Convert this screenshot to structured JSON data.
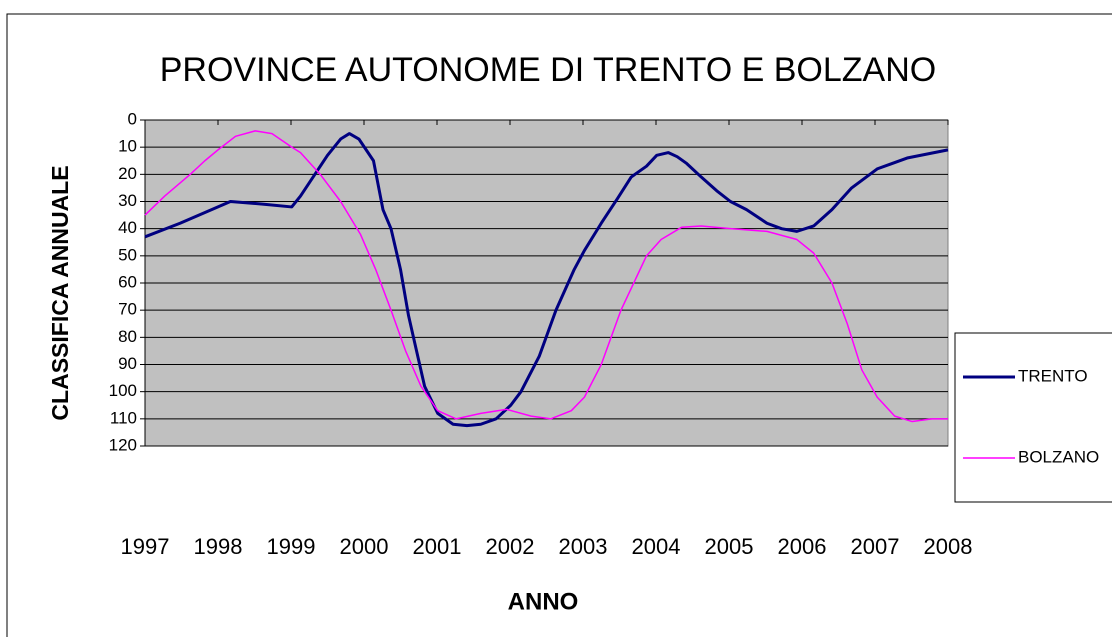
{
  "chart_data": {
    "type": "line",
    "title": "PROVINCE AUTONOME DI TRENTO E BOLZANO",
    "x_label": "ANNO",
    "y_label": "CLASSIFICA ANNUALE",
    "xlim": [
      1997,
      2008
    ],
    "xticks": [
      1997,
      1998,
      1999,
      2000,
      2001,
      2002,
      2003,
      2004,
      2005,
      2006,
      2007,
      2008
    ],
    "ylim": [
      0,
      120
    ],
    "y_inverted": true,
    "yticks": [
      0,
      10,
      20,
      30,
      40,
      50,
      60,
      70,
      80,
      90,
      100,
      110,
      120
    ],
    "grid": true,
    "legend": "right",
    "series": [
      {
        "name": "TRENTO",
        "color": "#000080",
        "x": [
          1997,
          1997.48,
          1998,
          1998.17,
          1998.63,
          1999.01,
          1999.13,
          1999.5,
          1999.68,
          1999.8,
          1999.93,
          2000.13,
          2000.26,
          2000.37,
          2000.5,
          2000.61,
          2000.72,
          2000.83,
          2001.01,
          2001.22,
          2001.41,
          2001.6,
          2001.81,
          2002.01,
          2002.15,
          2002.4,
          2002.63,
          2002.88,
          2003.02,
          2003.25,
          2003.47,
          2003.66,
          2003.87,
          2004.01,
          2004.17,
          2004.29,
          2004.42,
          2004.62,
          2004.83,
          2005.02,
          2005.24,
          2005.52,
          2005.72,
          2005.93,
          2006.16,
          2006.41,
          2006.68,
          2007.03,
          2007.44,
          2008
        ],
        "values": [
          43,
          38,
          32,
          30,
          31,
          32,
          28,
          13,
          7,
          5,
          7,
          15,
          33,
          40,
          55,
          72,
          85,
          98,
          108,
          112,
          112.5,
          112,
          110,
          105,
          100,
          87,
          70,
          55,
          48,
          38,
          29,
          21,
          17,
          13,
          12,
          13.5,
          16,
          21,
          26,
          30,
          33,
          38,
          40,
          41,
          39,
          33,
          25,
          18,
          14,
          11
        ]
      },
      {
        "name": "BOLZANO",
        "color": "#ff00ff",
        "x": [
          1997,
          1997.27,
          1997.62,
          1997.82,
          1998,
          1998.24,
          1998.51,
          1998.74,
          1999.01,
          1999.13,
          1999.4,
          1999.68,
          1999.95,
          2000.16,
          2000.37,
          2000.57,
          2000.78,
          2001.01,
          2001.26,
          2001.6,
          2001.95,
          2002.29,
          2002.56,
          2002.84,
          2003.02,
          2003.25,
          2003.52,
          2003.87,
          2004.07,
          2004.35,
          2004.62,
          2005.02,
          2005.52,
          2005.93,
          2006.16,
          2006.41,
          2006.62,
          2006.82,
          2007.03,
          2007.27,
          2007.51,
          2007.78,
          2008
        ],
        "values": [
          35,
          28,
          20,
          15,
          11,
          6,
          4,
          5,
          10,
          12,
          20,
          30,
          42,
          55,
          70,
          85,
          98,
          107,
          110,
          108,
          106.5,
          109,
          110,
          107,
          102,
          90,
          70,
          50,
          44,
          39.5,
          39,
          40,
          41,
          44,
          49,
          60,
          75,
          92,
          102,
          109,
          111,
          110,
          110
        ]
      }
    ]
  }
}
